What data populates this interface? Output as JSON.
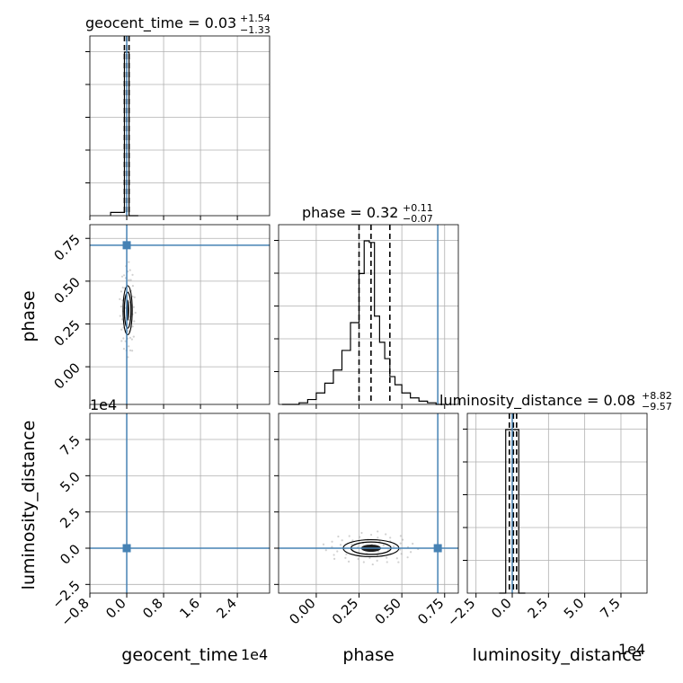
{
  "chart_data": {
    "type": "corner",
    "parameters": [
      "geocent_time",
      "phase",
      "luminosity_distance"
    ],
    "titles": [
      {
        "param": "geocent_time",
        "text": "geocent_time = 0.03",
        "plus": "+1.54",
        "minus": "−1.33"
      },
      {
        "param": "phase",
        "text": "phase = 0.32",
        "plus": "+0.11",
        "minus": "−0.07"
      },
      {
        "param": "luminosity_distance",
        "text": "luminosity_distance = 0.08",
        "plus": "+8.82",
        "minus": "−9.57"
      }
    ],
    "axis_labels": {
      "geocent_time": "geocent_time",
      "phase": "phase",
      "luminosity_distance": "luminosity_distance"
    },
    "offset_labels": {
      "geocent_time": "1e4",
      "luminosity_distance": "1e4"
    },
    "ticks": {
      "geocent_time": {
        "values": [
          -0.8,
          0.0,
          0.8,
          1.6,
          2.4
        ],
        "labels": [
          "−0.8",
          "0.0",
          "0.8",
          "1.6",
          "2.4"
        ],
        "range": [
          -0.8,
          3.1
        ]
      },
      "phase": {
        "values": [
          0.0,
          0.25,
          0.5,
          0.75
        ],
        "labels": [
          "0.00",
          "0.25",
          "0.50",
          "0.75"
        ],
        "range": [
          -0.22,
          0.83
        ]
      },
      "luminosity_distance": {
        "values": [
          -2.5,
          0.0,
          2.5,
          5.0,
          7.5
        ],
        "labels": [
          "−2.5",
          "0.0",
          "2.5",
          "5.0",
          "7.5"
        ],
        "range": [
          -3.1,
          9.3
        ]
      }
    },
    "injection": {
      "geocent_time": 0.0,
      "phase": 0.71,
      "luminosity_distance": 0.0
    },
    "injection_color": "#4682b4",
    "histograms": {
      "geocent_time": {
        "edges": [
          -0.35,
          -0.05,
          0.05,
          0.15,
          0.25
        ],
        "counts": [
          0.02,
          1.0,
          0.0,
          0.0
        ],
        "quantiles": [
          -0.05,
          0.0,
          0.05
        ]
      },
      "phase": {
        "edges": [
          -0.2,
          -0.15,
          -0.1,
          -0.05,
          0.0,
          0.05,
          0.1,
          0.15,
          0.2,
          0.25,
          0.28,
          0.31,
          0.34,
          0.37,
          0.4,
          0.43,
          0.46,
          0.5,
          0.55,
          0.6,
          0.65,
          0.7,
          0.75
        ],
        "counts": [
          0.0,
          0.0,
          0.01,
          0.03,
          0.07,
          0.13,
          0.21,
          0.33,
          0.5,
          0.8,
          1.0,
          0.99,
          0.54,
          0.38,
          0.28,
          0.17,
          0.12,
          0.07,
          0.04,
          0.02,
          0.01,
          0.0
        ],
        "quantiles": [
          0.25,
          0.32,
          0.43
        ]
      },
      "luminosity_distance": {
        "edges": [
          -0.9,
          -0.45,
          0.0,
          0.45,
          0.9
        ],
        "counts": [
          0.0,
          1.0,
          1.0,
          0.0
        ],
        "quantiles": [
          -0.2,
          0.08,
          0.3
        ]
      }
    },
    "contours": [
      {
        "x": "geocent_time",
        "y": "phase",
        "center": [
          0.02,
          0.33
        ],
        "radius": [
          0.08,
          0.11
        ]
      },
      {
        "x": "phase",
        "y": "luminosity_distance",
        "center": [
          0.32,
          0.0
        ],
        "radius": [
          0.13,
          0.45
        ]
      }
    ],
    "colors": {
      "line": "#000000",
      "grid": "#b0b0b0"
    }
  }
}
